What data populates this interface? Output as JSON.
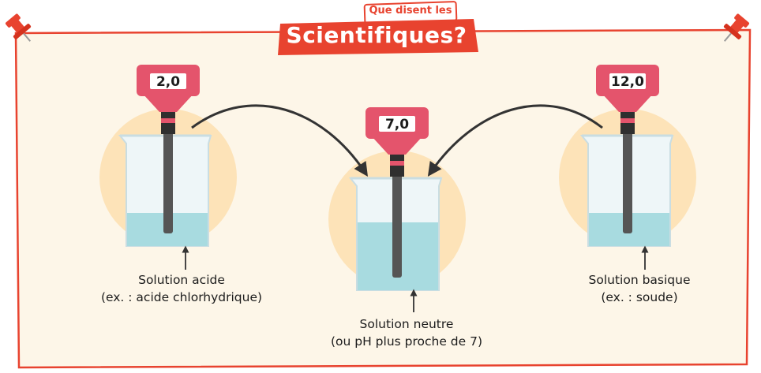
{
  "header": {
    "small": "Que disent les",
    "big": "Scientifiques?"
  },
  "probes": [
    {
      "reading": "2,0",
      "label_line1": "Solution acide",
      "label_line2": "(ex. : acide chlorhydrique)"
    },
    {
      "reading": "7,0",
      "label_line1": "Solution neutre",
      "label_line2": "(ou pH plus proche de 7)"
    },
    {
      "reading": "12,0",
      "label_line1": "Solution basique",
      "label_line2": "(ex. : soude)"
    }
  ],
  "colors": {
    "accent_red": "#e8432f",
    "probe_pink": "#e4546c",
    "halo": "#fde3b8",
    "liquid": "#a8dbe0",
    "glass": "#eef6f8",
    "panel": "#fdf6e8"
  },
  "icons": [
    "pushpin-icon",
    "pushpin-icon"
  ]
}
